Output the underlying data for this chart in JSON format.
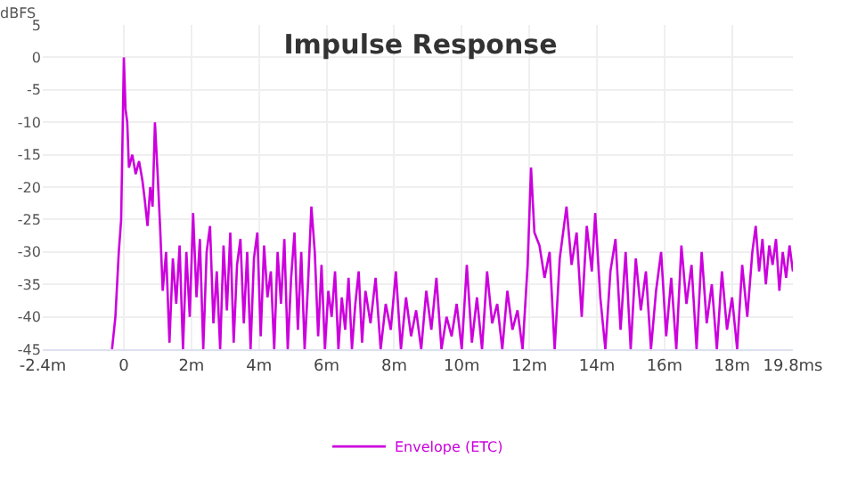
{
  "chart_data": {
    "type": "line",
    "title": "Impulse Response",
    "ylabel": "dBFS",
    "xlim": [
      -2.4,
      19.8
    ],
    "ylim": [
      -45,
      5
    ],
    "xticks": [
      {
        "value": -2.4,
        "label": "-2.4m"
      },
      0,
      {
        "value": 2,
        "label": "2m"
      },
      {
        "value": 4,
        "label": "4m"
      },
      {
        "value": 6,
        "label": "6m"
      },
      {
        "value": 8,
        "label": "8m"
      },
      {
        "value": 10,
        "label": "10m"
      },
      {
        "value": 12,
        "label": "12m"
      },
      {
        "value": 14,
        "label": "14m"
      },
      {
        "value": 16,
        "label": "16m"
      },
      {
        "value": 18,
        "label": "18m"
      },
      {
        "value": 19.8,
        "label": "19.8ms"
      }
    ],
    "yticks": [
      5,
      0,
      -5,
      -10,
      -15,
      -20,
      -25,
      -30,
      -35,
      -40,
      -45
    ],
    "grid": true,
    "legend": "bottom",
    "marker": "none",
    "line_style": "solid",
    "x": [
      -0.35,
      -0.25,
      -0.15,
      -0.08,
      0,
      0.05,
      0.1,
      0.15,
      0.25,
      0.35,
      0.45,
      0.55,
      0.62,
      0.7,
      0.78,
      0.85,
      0.92,
      1.0,
      1.08,
      1.15,
      1.25,
      1.35,
      1.45,
      1.55,
      1.65,
      1.75,
      1.85,
      1.95,
      2.05,
      2.15,
      2.25,
      2.35,
      2.45,
      2.55,
      2.65,
      2.75,
      2.85,
      2.95,
      3.05,
      3.15,
      3.25,
      3.35,
      3.45,
      3.55,
      3.65,
      3.75,
      3.85,
      3.95,
      4.05,
      4.15,
      4.25,
      4.35,
      4.45,
      4.55,
      4.65,
      4.75,
      4.85,
      4.95,
      5.05,
      5.15,
      5.25,
      5.35,
      5.45,
      5.55,
      5.65,
      5.75,
      5.85,
      5.95,
      6.05,
      6.15,
      6.25,
      6.35,
      6.45,
      6.55,
      6.65,
      6.75,
      6.85,
      6.95,
      7.05,
      7.15,
      7.3,
      7.45,
      7.6,
      7.75,
      7.9,
      8.05,
      8.2,
      8.35,
      8.5,
      8.65,
      8.8,
      8.95,
      9.1,
      9.25,
      9.4,
      9.55,
      9.7,
      9.85,
      10.0,
      10.15,
      10.3,
      10.45,
      10.6,
      10.75,
      10.9,
      11.05,
      11.2,
      11.35,
      11.5,
      11.65,
      11.8,
      11.95,
      12.05,
      12.15,
      12.3,
      12.45,
      12.6,
      12.75,
      12.9,
      13.1,
      13.25,
      13.4,
      13.55,
      13.7,
      13.85,
      13.95,
      14.1,
      14.25,
      14.4,
      14.55,
      14.7,
      14.85,
      15.0,
      15.15,
      15.3,
      15.45,
      15.6,
      15.75,
      15.9,
      16.05,
      16.2,
      16.35,
      16.5,
      16.65,
      16.8,
      16.95,
      17.1,
      17.25,
      17.4,
      17.55,
      17.7,
      17.85,
      18.0,
      18.15,
      18.3,
      18.45,
      18.6,
      18.7,
      18.8,
      18.9,
      19.0,
      19.1,
      19.2,
      19.3,
      19.4,
      19.5,
      19.6,
      19.7,
      19.8
    ],
    "series": [
      {
        "name": "Envelope (ETC)",
        "color": "#cc00dd",
        "values": [
          -45,
          -40,
          -30,
          -25,
          0,
          -8,
          -10,
          -17,
          -15,
          -18,
          -16,
          -19,
          -22,
          -26,
          -20,
          -23,
          -10,
          -18,
          -27,
          -36,
          -30,
          -44,
          -31,
          -38,
          -29,
          -45,
          -30,
          -40,
          -24,
          -37,
          -28,
          -45,
          -30,
          -26,
          -41,
          -33,
          -45,
          -29,
          -39,
          -27,
          -44,
          -32,
          -28,
          -41,
          -30,
          -45,
          -31,
          -27,
          -43,
          -29,
          -37,
          -33,
          -45,
          -30,
          -38,
          -28,
          -45,
          -34,
          -27,
          -42,
          -30,
          -45,
          -35,
          -23,
          -30,
          -43,
          -32,
          -45,
          -36,
          -40,
          -33,
          -45,
          -37,
          -42,
          -34,
          -45,
          -38,
          -33,
          -44,
          -36,
          -41,
          -34,
          -45,
          -38,
          -42,
          -33,
          -45,
          -37,
          -43,
          -39,
          -45,
          -36,
          -42,
          -34,
          -45,
          -40,
          -43,
          -38,
          -45,
          -32,
          -44,
          -37,
          -45,
          -33,
          -41,
          -38,
          -45,
          -36,
          -42,
          -39,
          -45,
          -32,
          -17,
          -27,
          -29,
          -34,
          -30,
          -45,
          -31,
          -23,
          -32,
          -27,
          -40,
          -26,
          -33,
          -24,
          -37,
          -45,
          -33,
          -28,
          -42,
          -30,
          -45,
          -31,
          -39,
          -33,
          -45,
          -36,
          -30,
          -43,
          -34,
          -45,
          -29,
          -38,
          -32,
          -45,
          -30,
          -41,
          -35,
          -45,
          -33,
          -42,
          -37,
          -45,
          -32,
          -40,
          -30,
          -26,
          -33,
          -28,
          -35,
          -29,
          -32,
          -28,
          -36,
          -30,
          -34,
          -29,
          -33
        ]
      }
    ]
  }
}
